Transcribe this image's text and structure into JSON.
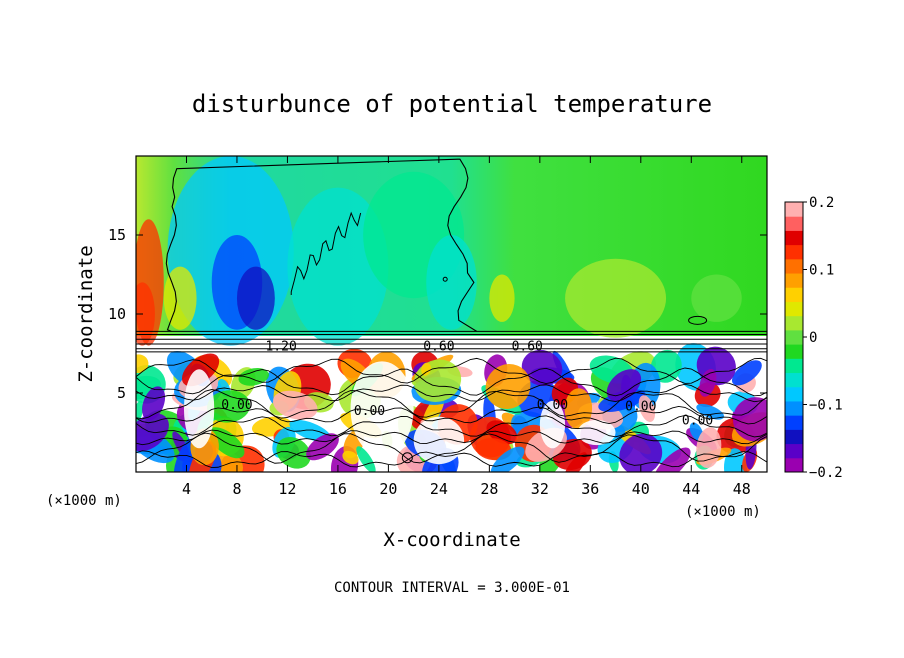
{
  "chart_data": {
    "type": "heatmap",
    "title": "disturbunce of potential temperature",
    "xlabel": "X-coordinate",
    "ylabel": "Z-coordinate",
    "x_unit_left": "(×1000 m)",
    "x_unit_right": "(×1000 m)",
    "xlim": [
      0,
      50
    ],
    "ylim": [
      0,
      20
    ],
    "xticks": [
      4,
      8,
      12,
      16,
      20,
      24,
      28,
      32,
      36,
      40,
      44,
      48
    ],
    "yticks": [
      5,
      10,
      15
    ],
    "colorbar": {
      "range": [
        -0.2,
        0.2
      ],
      "ticks": [
        0.2,
        0.1,
        0,
        -0.1,
        -0.2
      ],
      "tick_labels": [
        "0.2",
        "0.1",
        "0",
        "−0.1",
        "−0.2"
      ],
      "colors": [
        "#9a00b0",
        "#5a00c8",
        "#1010c0",
        "#0040ff",
        "#0090ff",
        "#00c8ff",
        "#00e0d0",
        "#00e890",
        "#20d820",
        "#60e040",
        "#a8e830",
        "#e0e800",
        "#ffd000",
        "#ffa000",
        "#ff7000",
        "#ff3000",
        "#e00000",
        "#ff6060",
        "#ffb0b0"
      ]
    },
    "contour_interval": "CONTOUR INTERVAL = 3.000E-01",
    "contour_labels": [
      "1.20",
      "0.60",
      "0.00",
      "0.60",
      "0.00",
      "0.00",
      "0.00",
      "0.00"
    ]
  }
}
